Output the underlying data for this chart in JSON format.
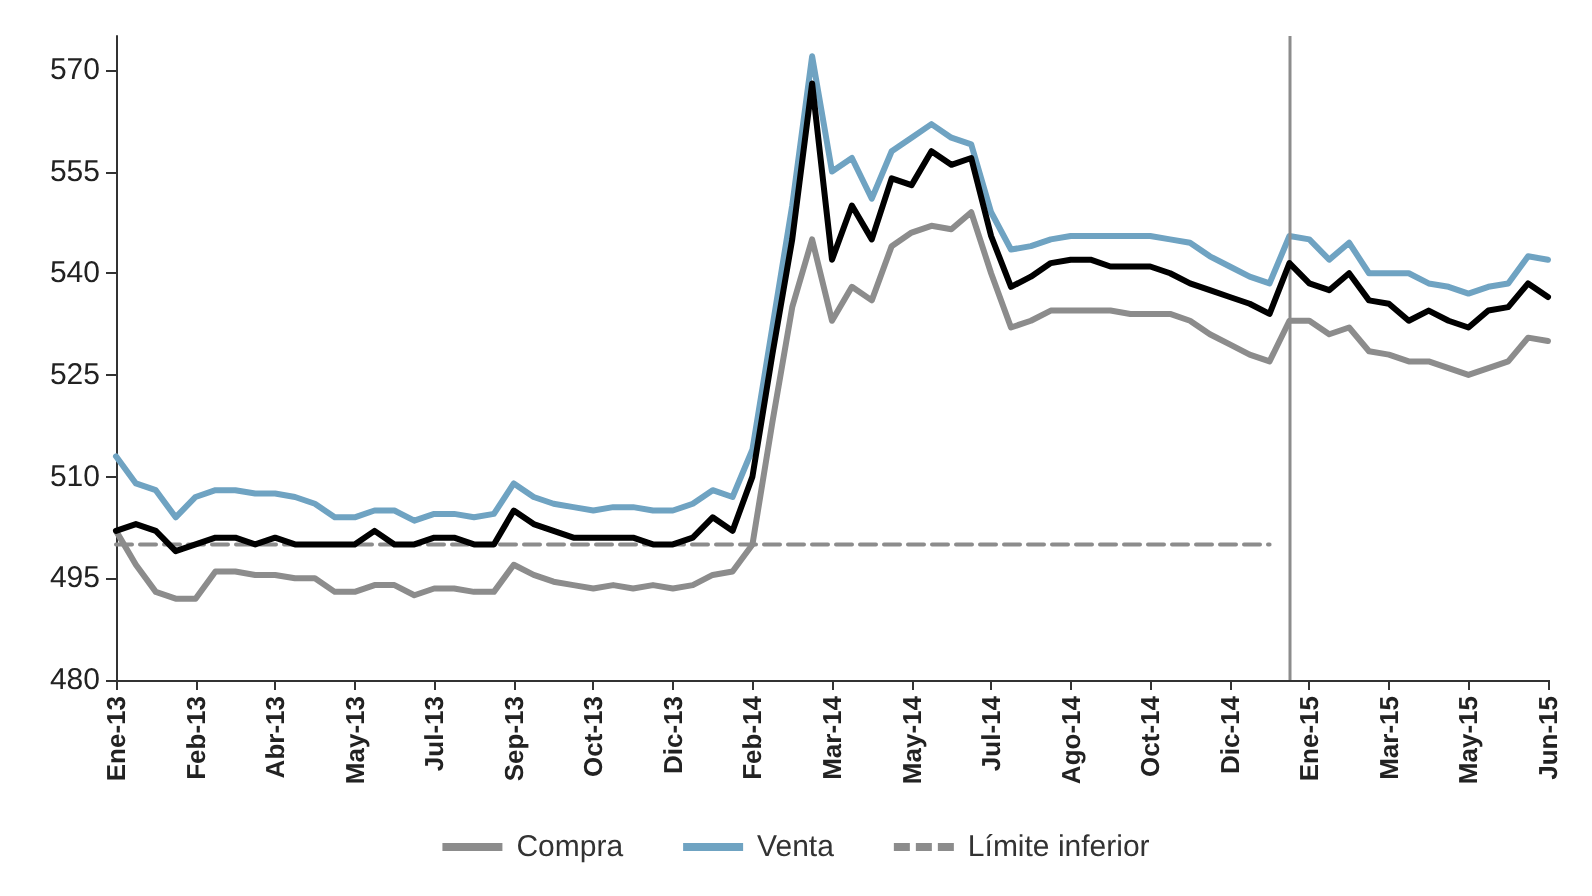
{
  "chart_data": {
    "type": "line",
    "categories": [
      "Ene-13",
      null,
      null,
      null,
      "Feb-13",
      null,
      null,
      null,
      "Abr-13",
      null,
      null,
      null,
      "May-13",
      null,
      null,
      null,
      "Jul-13",
      null,
      null,
      null,
      "Sep-13",
      null,
      null,
      null,
      "Oct-13",
      null,
      null,
      null,
      "Dic-13",
      null,
      null,
      null,
      "Feb-14",
      null,
      null,
      null,
      "Mar-14",
      null,
      null,
      null,
      "May-14",
      null,
      null,
      null,
      "Jul-14",
      null,
      null,
      null,
      "Ago-14",
      null,
      null,
      null,
      "Oct-14",
      null,
      null,
      null,
      "Dic-14",
      null,
      null,
      null,
      "Ene-15",
      null,
      null,
      null,
      "Mar-15",
      null,
      null,
      null,
      "May-15",
      null,
      null,
      null,
      "Jun-15"
    ],
    "series": [
      {
        "name": "Compra",
        "color": "#8c8c8c",
        "values": [
          502,
          497,
          493,
          492,
          492,
          496,
          496,
          495.5,
          495.5,
          495,
          495,
          493,
          493,
          494,
          494,
          492.5,
          493.5,
          493.5,
          493,
          493,
          497,
          495.5,
          494.5,
          494,
          493.5,
          494,
          493.5,
          494,
          493.5,
          494,
          495.5,
          496,
          500,
          518,
          535,
          545,
          533,
          538,
          536,
          544,
          546,
          547,
          546.5,
          549,
          540,
          532,
          533,
          534.5,
          534.5,
          534.5,
          534.5,
          534,
          534,
          534,
          533,
          531,
          529.5,
          528,
          527,
          533,
          533,
          531,
          532,
          528.5,
          528,
          527,
          527,
          526,
          525,
          526,
          527,
          530.5,
          530
        ]
      },
      {
        "name": "Venta",
        "color": "#6fa3c2",
        "values": [
          513,
          509,
          508,
          504,
          507,
          508,
          508,
          507.5,
          507.5,
          507,
          506,
          504,
          504,
          505,
          505,
          503.5,
          504.5,
          504.5,
          504,
          504.5,
          509,
          507,
          506,
          505.5,
          505,
          505.5,
          505.5,
          505,
          505,
          506,
          508,
          507,
          514,
          532,
          550,
          572,
          555,
          557,
          551,
          558,
          560,
          562,
          560,
          559,
          549,
          543.5,
          544,
          545,
          545.5,
          545.5,
          545.5,
          545.5,
          545.5,
          545,
          544.5,
          542.5,
          541,
          539.5,
          538.5,
          545.5,
          545,
          542,
          544.5,
          540,
          540,
          540,
          538.5,
          538,
          537,
          538,
          538.5,
          542.5,
          542
        ]
      },
      {
        "color": "#000000",
        "values": [
          502,
          503,
          502,
          499,
          500,
          501,
          501,
          500,
          501,
          500,
          500,
          500,
          500,
          502,
          500,
          500,
          501,
          501,
          500,
          500,
          505,
          503,
          502,
          501,
          501,
          501,
          501,
          500,
          500,
          501,
          504,
          502,
          510,
          528,
          545,
          568,
          542,
          550,
          545,
          554,
          553,
          558,
          556,
          557,
          545.5,
          538,
          539.5,
          541.5,
          542,
          542,
          541,
          541,
          541,
          540,
          538.5,
          537.5,
          536.5,
          535.5,
          534,
          541.5,
          538.5,
          537.5,
          540,
          536,
          535.5,
          533,
          534.5,
          533,
          532,
          534.5,
          535,
          538.5,
          536.5
        ]
      },
      {
        "name": "Límite inferior",
        "color": "#8c8c8c",
        "line_style": "dashed",
        "values": [
          500,
          500,
          500,
          500,
          500,
          500,
          500,
          500,
          500,
          500,
          500,
          500,
          500,
          500,
          500,
          500,
          500,
          500,
          500,
          500,
          500,
          500,
          500,
          500,
          500,
          500,
          500,
          500,
          500,
          500,
          500,
          500,
          500,
          500,
          500,
          500,
          500,
          500,
          500,
          500,
          500,
          500,
          500,
          500,
          500,
          500,
          500,
          500,
          500,
          500,
          500,
          500,
          500,
          500,
          500,
          500,
          500,
          500,
          500,
          null,
          null,
          null,
          null,
          null,
          null,
          null,
          null,
          null,
          null,
          null,
          null,
          null,
          null
        ]
      }
    ],
    "ylim": [
      480,
      575
    ],
    "yticks": [
      480,
      495,
      510,
      525,
      540,
      555,
      570
    ],
    "grid": false,
    "legend": "bottom",
    "marker": "none"
  }
}
